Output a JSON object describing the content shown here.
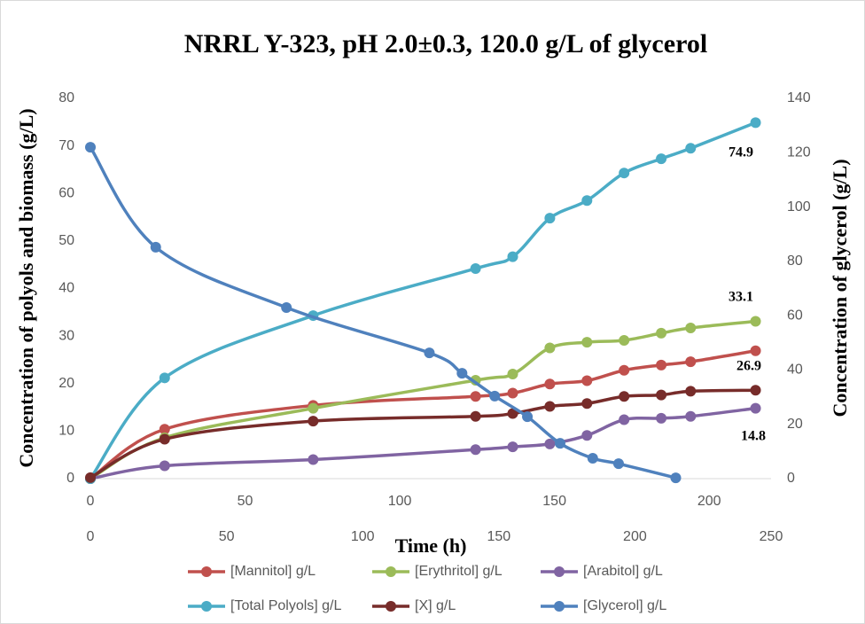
{
  "chart_data": {
    "type": "line",
    "title": "NRRL Y-323, pH 2.0±0.3, 120.0 g/L of glycerol",
    "x_label": "Time (h)",
    "y_label": "Concentration of polyols and biomass (g/L)",
    "y2_label": "Concentration of glycerol (g/L)",
    "x": [
      0,
      24,
      72,
      124.5,
      136.5,
      148.5,
      160.5,
      172.5,
      184.5,
      194,
      215
    ],
    "xlim": [
      0,
      220
    ],
    "xticks": [
      0,
      50,
      100,
      150,
      200
    ],
    "x2lim": [
      0,
      250
    ],
    "x2ticks": [
      0,
      50,
      100,
      150,
      200,
      250
    ],
    "ylim": [
      0,
      80
    ],
    "yticks": [
      0,
      10,
      20,
      30,
      40,
      50,
      60,
      70,
      80
    ],
    "y2lim": [
      0,
      140
    ],
    "y2ticks": [
      0,
      20,
      40,
      60,
      80,
      100,
      120,
      140
    ],
    "grid": false,
    "series": [
      {
        "name": "[Mannitol] g/L",
        "color": "#c0504d",
        "values": [
          0,
          10.4,
          15.4,
          17.3,
          18,
          19.9,
          20.6,
          22.8,
          23.9,
          24.6,
          26.9
        ]
      },
      {
        "name": "[Erythritol] g/L",
        "color": "#9bbb59",
        "values": [
          0,
          8.6,
          14.8,
          20.7,
          22,
          27.5,
          28.7,
          29.1,
          30.6,
          31.7,
          33.1
        ]
      },
      {
        "name": "[Arabitol] g/L",
        "color": "#8064a2",
        "values": [
          0,
          2.7,
          4.0,
          6.1,
          6.7,
          7.3,
          9.1,
          12.4,
          12.7,
          13.1,
          14.8
        ]
      },
      {
        "name": "[Total Polyols] g/L",
        "color": "#4bacc6",
        "values": [
          0,
          21.2,
          34.3,
          44.2,
          46.7,
          54.8,
          58.5,
          64.3,
          67.3,
          69.5,
          74.9
        ]
      },
      {
        "name": "[X] g/L",
        "color": "#772c2a",
        "values": [
          0.2,
          8.3,
          12.1,
          13.1,
          13.7,
          15.2,
          15.8,
          17.3,
          17.6,
          18.4,
          18.6
        ]
      },
      {
        "name": "[Glycerol] g/L",
        "color": "#4f81bd",
        "axis": "y2",
        "xaxis": "x2",
        "values": [
          122,
          85.2,
          63,
          46.3,
          38.8,
          30.4,
          22.8,
          13,
          7.5,
          5.5,
          0.3
        ]
      }
    ],
    "annotations": [
      "74.9",
      "33.1",
      "26.9",
      "14.8"
    ]
  }
}
